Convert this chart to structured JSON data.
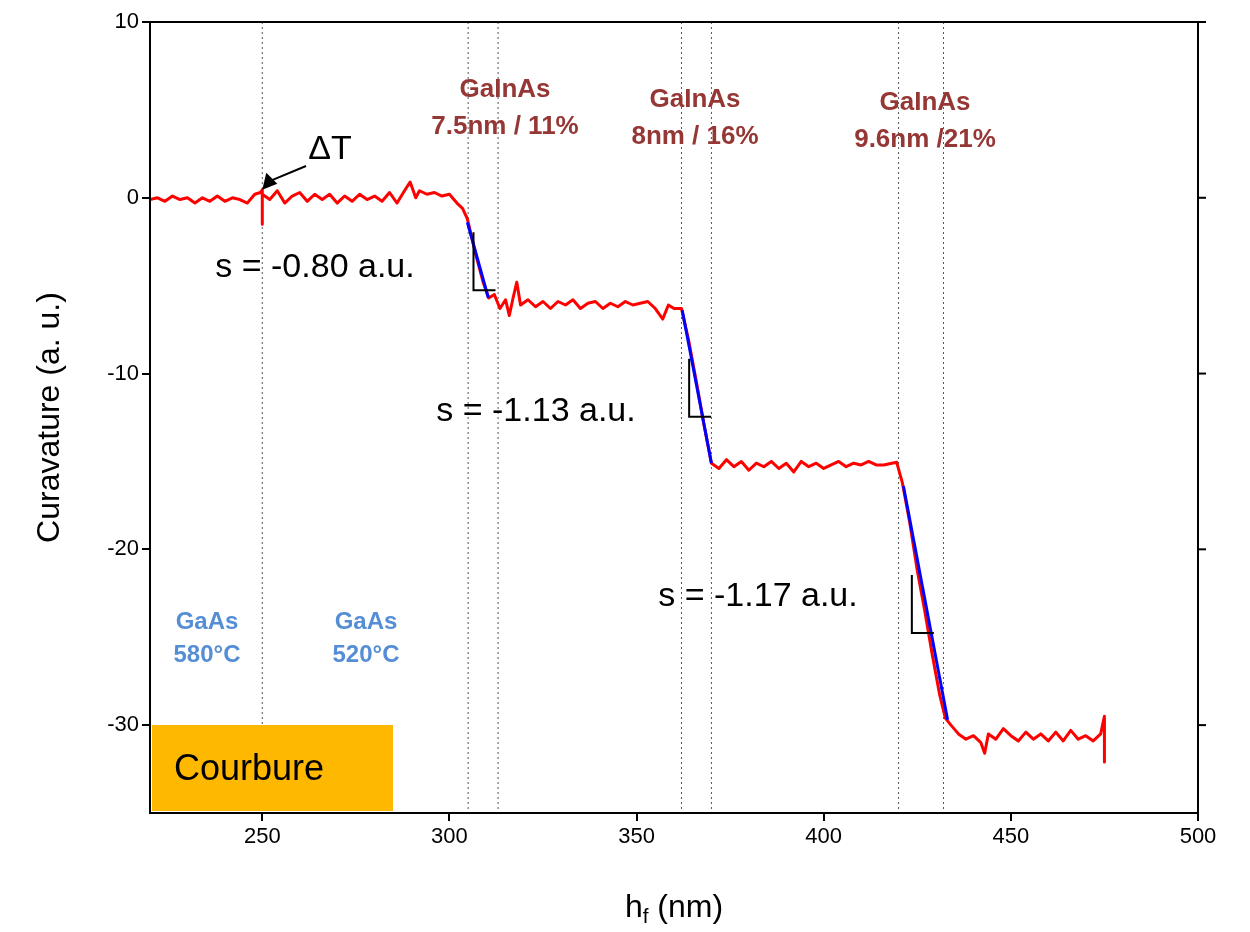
{
  "chart_data": {
    "type": "line",
    "xlabel": "h$_{f}$ (nm)",
    "ylabel": "Curavature (a. u.)",
    "xlim": [
      220,
      500
    ],
    "xticks": [
      250,
      300,
      350,
      400,
      450,
      500
    ],
    "ylim": [
      -35,
      10
    ],
    "yticks": [
      -30,
      -20,
      -10,
      0,
      10
    ],
    "grid": false,
    "legend": false,
    "marker": "none",
    "line_style": "solid",
    "series": [
      {
        "color": "#ff0000",
        "x": [
          220,
          222,
          224,
          226,
          228,
          230,
          232,
          234,
          236,
          238,
          240,
          242,
          244,
          246,
          248,
          249.5,
          250,
          250,
          250,
          252,
          254,
          256,
          258,
          260,
          262,
          264,
          266,
          268,
          270,
          272,
          274,
          276,
          278,
          280,
          282,
          284,
          286,
          288,
          289.5,
          291,
          292,
          294,
          296,
          298,
          300,
          302,
          303.5,
          304.8,
          307,
          309,
          310.5,
          312,
          313.5,
          315,
          316,
          317,
          318,
          319,
          321,
          323,
          325,
          327,
          329,
          331,
          333,
          335,
          337,
          339,
          341,
          343,
          345,
          347,
          349,
          351,
          353,
          355,
          357,
          358.5,
          360,
          362,
          364,
          366,
          368,
          370,
          372,
          374,
          376,
          378,
          380,
          382,
          384,
          386,
          388,
          390,
          392,
          394,
          396,
          398,
          400,
          402,
          404,
          406,
          408,
          410,
          412,
          414,
          416,
          419.5,
          421,
          423,
          425,
          427,
          429,
          431,
          432.5,
          434,
          436,
          438,
          440,
          442,
          443,
          444,
          446,
          448,
          450,
          452,
          454,
          456,
          458,
          460,
          462,
          464,
          466,
          468,
          470,
          472,
          474,
          475,
          475
        ],
        "values": [
          -0.1,
          0.0,
          -0.2,
          0.1,
          -0.1,
          0.0,
          -0.3,
          0.0,
          -0.2,
          0.1,
          -0.2,
          0.0,
          -0.1,
          -0.3,
          0.2,
          0.3,
          0.45,
          -1.5,
          0.2,
          -0.1,
          0.4,
          -0.3,
          0.1,
          0.3,
          -0.2,
          0.2,
          -0.1,
          0.2,
          -0.3,
          0.1,
          -0.2,
          0.2,
          -0.1,
          0.1,
          -0.2,
          0.3,
          -0.3,
          0.4,
          0.9,
          0.0,
          0.4,
          0.2,
          0.3,
          0.1,
          0.2,
          -0.3,
          -0.6,
          -1.2,
          -3.2,
          -4.8,
          -5.7,
          -5.5,
          -6.3,
          -5.8,
          -6.7,
          -5.7,
          -4.8,
          -6.1,
          -5.8,
          -6.2,
          -5.9,
          -6.3,
          -5.9,
          -6.1,
          -5.8,
          -6.3,
          -6.0,
          -5.9,
          -6.3,
          -6.0,
          -6.2,
          -5.9,
          -6.1,
          -6.0,
          -5.9,
          -6.3,
          -6.9,
          -6.1,
          -6.3,
          -6.3,
          -8.2,
          -10.5,
          -12.9,
          -15.1,
          -15.4,
          -14.9,
          -15.3,
          -15.0,
          -15.5,
          -15.1,
          -15.3,
          -15.0,
          -15.4,
          -15.1,
          -15.6,
          -15.0,
          -15.3,
          -15.1,
          -15.4,
          -15.2,
          -15.0,
          -15.3,
          -15.1,
          -15.2,
          -15.0,
          -15.2,
          -15.2,
          -15.05,
          -16.2,
          -18.5,
          -21.2,
          -23.5,
          -26.0,
          -28.3,
          -29.6,
          -30.0,
          -30.5,
          -30.8,
          -30.6,
          -31.0,
          -31.6,
          -30.5,
          -30.8,
          -30.2,
          -30.6,
          -30.9,
          -30.4,
          -30.8,
          -30.5,
          -30.9,
          -30.4,
          -30.9,
          -30.3,
          -30.8,
          -30.6,
          -30.9,
          -30.5,
          -29.5,
          -32.1
        ]
      },
      {
        "color": "#0000ff",
        "x": [
          304.8,
          310.4
        ],
        "values": [
          -1.4,
          -5.7
        ]
      },
      {
        "color": "#0000ff",
        "x": [
          362.2,
          370
        ],
        "values": [
          -6.4,
          -15.1
        ]
      },
      {
        "color": "#0000ff",
        "x": [
          421.3,
          433.1
        ],
        "values": [
          -16.4,
          -29.7
        ]
      }
    ],
    "ref_lines": [
      {
        "axis": "x",
        "value": 250,
        "color": "#555555",
        "line_style": "dotted"
      },
      {
        "axis": "x",
        "value": 305,
        "color": "#555555",
        "line_style": "dotted"
      },
      {
        "axis": "x",
        "value": 313,
        "color": "#555555",
        "line_style": "dotted"
      },
      {
        "axis": "x",
        "value": 362,
        "color": "#555555",
        "line_style": "dotted"
      },
      {
        "axis": "x",
        "value": 370,
        "color": "#555555",
        "line_style": "dotted"
      },
      {
        "axis": "x",
        "value": 420,
        "color": "#555555",
        "line_style": "dotted"
      },
      {
        "axis": "x",
        "value": 432,
        "color": "#555555",
        "line_style": "dotted"
      }
    ],
    "annotations": [
      {
        "text": "ΔT",
        "x": 250,
        "y": 0.45
      },
      "GaInAs\n7.5nm / 11%",
      "GaInAs\n8nm / 16%",
      "GaInAs\n9.6nm /21%",
      "s = -0.80 a.u.",
      "s = -1.13 a.u.",
      "s = -1.17 a.u.",
      "GaAs\n580°C",
      "GaAs\n520°C",
      "Courbure"
    ]
  }
}
